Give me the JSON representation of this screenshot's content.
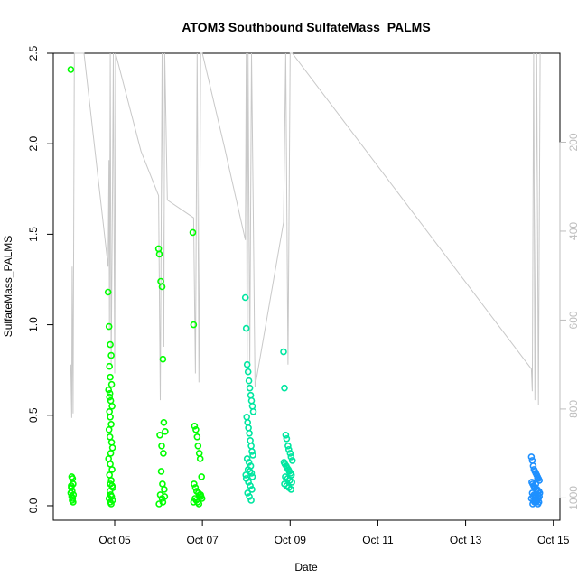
{
  "chart_data": {
    "type": "scatter",
    "title": "ATOM3 Southbound SulfateMass_PALMS",
    "xlabel": "Date",
    "ylabel": "SulfateMass_PALMS",
    "x_unit": "day of October 2017",
    "xlim": [
      3.6,
      15.15
    ],
    "ylim": [
      -0.08,
      2.5
    ],
    "y_ticks": [
      0.0,
      0.5,
      1.0,
      1.5,
      2.0,
      2.5
    ],
    "y_tick_labels": [
      "0.0",
      "0.5",
      "1.0",
      "1.5",
      "2.0",
      "2.5"
    ],
    "x_ticks": [
      5,
      7,
      9,
      11,
      13,
      15
    ],
    "x_tick_labels": [
      "Oct 05",
      "Oct 07",
      "Oct 09",
      "Oct 11",
      "Oct 13",
      "Oct 15"
    ],
    "right_axis": {
      "range": [
        0,
        1050
      ],
      "ticks": [
        200,
        400,
        600,
        800,
        1000
      ],
      "tick_labels": [
        "200",
        "400",
        "600",
        "800",
        "1000"
      ],
      "color": "#bdbdbd"
    },
    "grid": false,
    "legend": "none",
    "colors": {
      "early": "#00ff00",
      "mid": "#00e6a0",
      "late": "#1e90ff",
      "overlay": "#c8c8c8"
    },
    "series": [
      {
        "x": [
          4.0,
          4.02,
          4.04,
          4.05,
          4.01,
          4.03,
          4.06,
          4.02,
          4.04,
          4.03,
          4.05,
          4.01,
          4.0,
          4.85,
          4.87,
          4.9,
          4.92,
          4.88,
          4.9,
          4.93,
          4.86,
          4.89,
          4.91,
          4.94,
          4.88,
          4.9,
          4.92,
          4.87,
          4.89,
          4.93,
          4.95,
          4.91,
          4.86,
          4.9,
          4.94,
          4.88,
          4.92,
          4.9,
          4.96,
          4.89,
          4.91,
          4.93,
          4.87,
          4.95,
          4.9,
          4.92,
          4.88,
          4.94,
          6.0,
          6.02,
          6.05,
          6.08,
          6.1,
          6.12,
          6.15,
          6.03,
          6.07,
          6.11,
          6.06,
          6.09,
          6.13,
          6.04,
          6.08,
          6.1,
          6.01,
          6.14,
          6.78,
          6.8,
          6.82,
          6.85,
          6.88,
          6.9,
          6.93,
          6.95,
          6.98,
          6.81,
          6.84,
          6.87,
          6.91,
          6.94,
          6.97,
          6.83,
          6.86,
          6.89,
          6.92,
          6.96,
          6.99,
          6.8
        ],
        "y": [
          2.41,
          0.16,
          0.15,
          0.12,
          0.1,
          0.08,
          0.06,
          0.05,
          0.04,
          0.03,
          0.02,
          0.11,
          0.07,
          1.18,
          0.99,
          0.89,
          0.83,
          0.77,
          0.71,
          0.67,
          0.64,
          0.62,
          0.58,
          0.55,
          0.52,
          0.49,
          0.45,
          0.42,
          0.38,
          0.35,
          0.32,
          0.29,
          0.26,
          0.23,
          0.2,
          0.17,
          0.14,
          0.12,
          0.1,
          0.08,
          0.06,
          0.05,
          0.04,
          0.03,
          0.02,
          0.01,
          0.6,
          0.11,
          1.42,
          1.39,
          1.24,
          1.21,
          0.81,
          0.46,
          0.41,
          0.39,
          0.33,
          0.29,
          0.19,
          0.12,
          0.09,
          0.06,
          0.04,
          0.02,
          0.01,
          0.05,
          1.51,
          1.0,
          0.44,
          0.42,
          0.38,
          0.33,
          0.29,
          0.26,
          0.16,
          0.12,
          0.1,
          0.08,
          0.07,
          0.06,
          0.05,
          0.04,
          0.03,
          0.02,
          0.01,
          0.06,
          0.04,
          0.02
        ],
        "color": "#00ff00"
      },
      {
        "x": [
          7.98,
          8.0,
          8.02,
          8.04,
          8.06,
          8.08,
          8.1,
          8.12,
          8.14,
          8.16,
          8.01,
          8.03,
          8.05,
          8.07,
          8.09,
          8.11,
          8.13,
          8.15,
          8.02,
          8.06,
          8.1,
          8.04,
          8.08,
          8.12,
          7.99,
          8.14,
          8.0,
          8.05,
          8.09,
          8.13,
          8.03,
          8.07,
          8.11,
          8.85,
          8.87,
          8.9,
          8.92,
          8.95,
          8.97,
          9.0,
          9.02,
          9.05,
          8.86,
          8.88,
          8.91,
          8.93,
          8.96,
          8.98,
          9.01,
          9.03,
          8.89,
          8.94,
          8.99,
          9.04,
          8.87,
          8.92,
          8.97,
          9.02
        ],
        "y": [
          1.15,
          0.98,
          0.78,
          0.74,
          0.69,
          0.65,
          0.61,
          0.58,
          0.55,
          0.52,
          0.49,
          0.46,
          0.43,
          0.4,
          0.36,
          0.33,
          0.3,
          0.28,
          0.26,
          0.24,
          0.22,
          0.2,
          0.19,
          0.18,
          0.17,
          0.16,
          0.15,
          0.13,
          0.11,
          0.09,
          0.07,
          0.05,
          0.03,
          0.85,
          0.65,
          0.39,
          0.37,
          0.33,
          0.31,
          0.29,
          0.27,
          0.25,
          0.24,
          0.23,
          0.22,
          0.21,
          0.2,
          0.19,
          0.18,
          0.17,
          0.16,
          0.15,
          0.14,
          0.13,
          0.12,
          0.11,
          0.1,
          0.09
        ],
        "color": "#00e6a0"
      },
      {
        "x": [
          14.5,
          14.52,
          14.54,
          14.56,
          14.58,
          14.6,
          14.62,
          14.64,
          14.66,
          14.68,
          14.51,
          14.53,
          14.55,
          14.57,
          14.59,
          14.61,
          14.63,
          14.65,
          14.67,
          14.69,
          14.52,
          14.56,
          14.6,
          14.64,
          14.68,
          14.54,
          14.58,
          14.62,
          14.66,
          14.5,
          14.55,
          14.59,
          14.63,
          14.67,
          14.57,
          14.61,
          14.65,
          14.53,
          14.6,
          14.64
        ],
        "y": [
          0.27,
          0.25,
          0.22,
          0.2,
          0.19,
          0.18,
          0.17,
          0.16,
          0.15,
          0.14,
          0.13,
          0.12,
          0.11,
          0.1,
          0.1,
          0.09,
          0.09,
          0.08,
          0.08,
          0.07,
          0.07,
          0.06,
          0.06,
          0.06,
          0.05,
          0.05,
          0.05,
          0.04,
          0.04,
          0.04,
          0.03,
          0.03,
          0.03,
          0.02,
          0.02,
          0.02,
          0.01,
          0.01,
          0.12,
          0.15
        ],
        "color": "#1e90ff"
      }
    ],
    "overlay_line": {
      "axis": "right",
      "color": "#c8c8c8",
      "x": [
        4.0,
        4.02,
        4.03,
        4.05,
        4.08,
        4.3,
        4.85,
        4.87,
        4.88,
        4.9,
        4.92,
        4.95,
        4.97,
        5.0,
        5.02,
        5.6,
        6.0,
        6.04,
        6.08,
        6.12,
        6.14,
        6.2,
        6.8,
        6.84,
        6.88,
        6.92,
        6.96,
        7.0,
        7.5,
        7.98,
        8.0,
        8.02,
        8.04,
        8.08,
        8.12,
        8.16,
        8.2,
        8.85,
        8.9,
        8.95,
        9.0,
        9.05,
        14.5,
        14.52,
        14.55,
        14.58,
        14.62,
        14.66,
        14.7
      ],
      "y": [
        700,
        820,
        480,
        810,
        0,
        0,
        480,
        240,
        620,
        0,
        700,
        300,
        0,
        720,
        0,
        220,
        320,
        780,
        0,
        660,
        0,
        330,
        370,
        720,
        0,
        740,
        0,
        0,
        210,
        420,
        0,
        720,
        0,
        700,
        0,
        370,
        750,
        380,
        0,
        700,
        0,
        0,
        710,
        760,
        0,
        780,
        0,
        790,
        0
      ]
    }
  }
}
